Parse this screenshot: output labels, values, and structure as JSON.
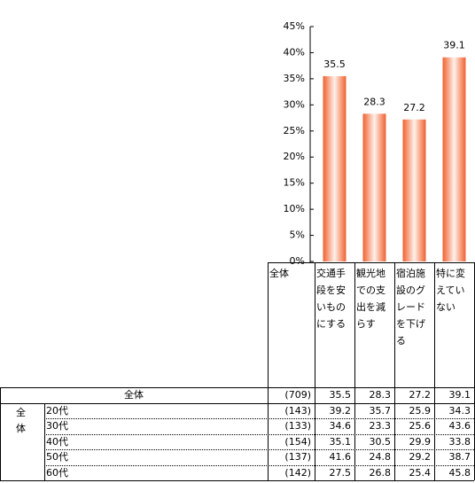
{
  "chart_data": {
    "type": "bar",
    "categories": [
      "交通手段を安いものにする",
      "観光地での支出を減らす",
      "宿泊施設のグレードを下げる",
      "特に変えていない"
    ],
    "values": [
      35.5,
      28.3,
      27.2,
      39.1
    ],
    "color": "#f0602e",
    "ylim": [
      0,
      45
    ],
    "yticks": [
      {
        "value": 0,
        "label": "0%"
      },
      {
        "value": 5,
        "label": "5%"
      },
      {
        "value": 10,
        "label": "10%"
      },
      {
        "value": 15,
        "label": "15%"
      },
      {
        "value": 20,
        "label": "20%"
      },
      {
        "value": 25,
        "label": "25%"
      },
      {
        "value": 30,
        "label": "30%"
      },
      {
        "value": 35,
        "label": "35%"
      },
      {
        "value": 40,
        "label": "40%"
      },
      {
        "value": 45,
        "label": "45%"
      }
    ],
    "grid": false
  },
  "table": {
    "n_header": "全体",
    "group_label": "全体",
    "total": {
      "label": "全体",
      "n": "(709)",
      "values": [
        35.5,
        28.3,
        27.2,
        39.1
      ]
    },
    "rows": [
      {
        "label": "20代",
        "n": "(143)",
        "values": [
          39.2,
          35.7,
          25.9,
          34.3
        ]
      },
      {
        "label": "30代",
        "n": "(133)",
        "values": [
          34.6,
          23.3,
          25.6,
          43.6
        ]
      },
      {
        "label": "40代",
        "n": "(154)",
        "values": [
          35.1,
          30.5,
          29.9,
          33.8
        ]
      },
      {
        "label": "50代",
        "n": "(137)",
        "values": [
          41.6,
          24.8,
          29.2,
          38.7
        ]
      },
      {
        "label": "60代",
        "n": "(142)",
        "values": [
          27.5,
          26.8,
          25.4,
          45.8
        ]
      }
    ]
  }
}
